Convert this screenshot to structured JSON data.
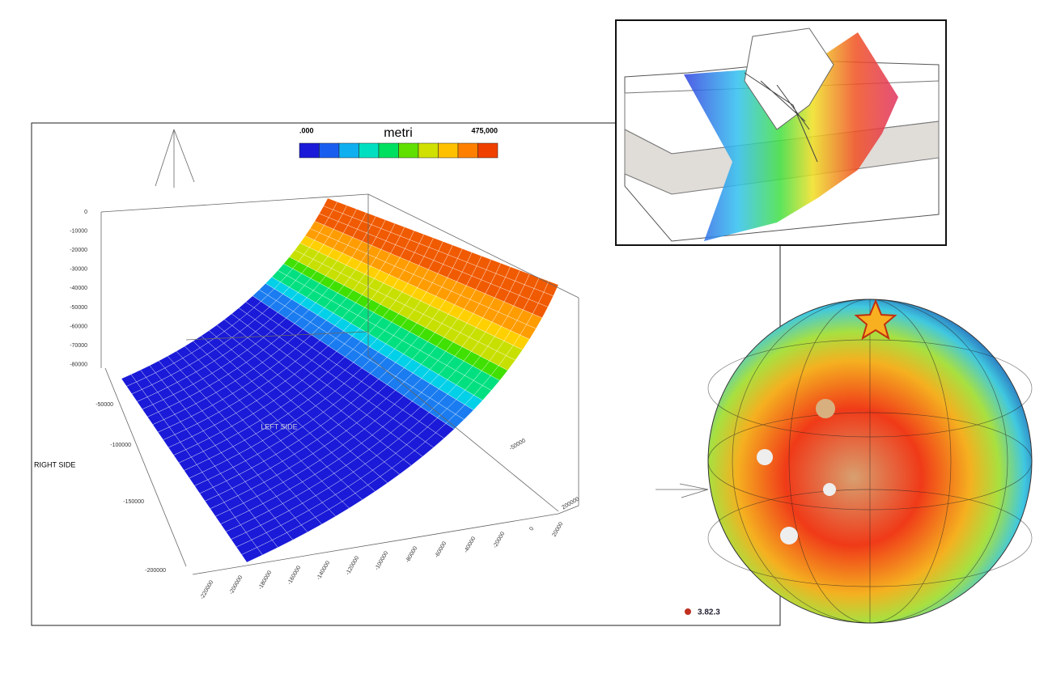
{
  "main_plot": {
    "colorbar": {
      "min_label": ".000",
      "unit": "metri",
      "max_label": "475,000"
    },
    "vertical_ticks": [
      "0",
      "-10000",
      "-20000",
      "-30000",
      "-40000",
      "-50000",
      "-60000",
      "-70000",
      "-80000"
    ],
    "depth_ticks": [
      "-50000",
      "-100000",
      "-150000",
      "-200000"
    ],
    "right_depth_ticks": [
      "-50000",
      "200000"
    ],
    "bottom_ticks": [
      "-220000",
      "-200000",
      "-180000",
      "-160000",
      "-140000",
      "-120000",
      "-100000",
      "-80000",
      "-60000",
      "-40000",
      "-20000",
      "0",
      "20000"
    ],
    "right_label": "RIGHT SIDE",
    "left_label": "LEFT SIDE",
    "version": "3.82.3"
  }
}
